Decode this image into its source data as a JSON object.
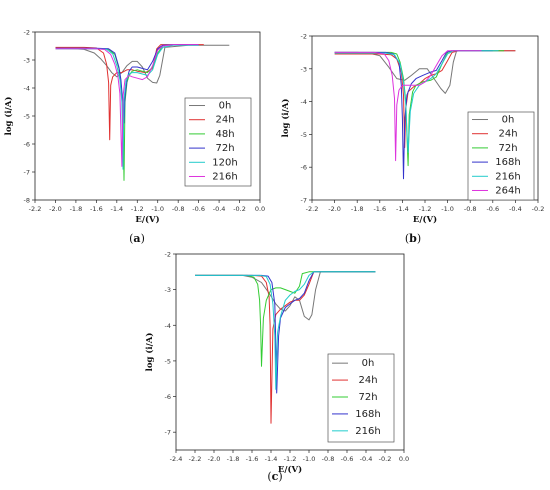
{
  "chart_data": [
    {
      "type": "line",
      "panel_label": "a",
      "xlabel": "E/(V)",
      "ylabel": "log (i/A)",
      "xlim": [
        -2.2,
        0.0
      ],
      "ylim": [
        -8,
        -2
      ],
      "xticks": [
        "-2.2",
        "-2.0",
        "-1.8",
        "-1.6",
        "-1.4",
        "-1.2",
        "-1.0",
        "-0.8",
        "-0.6",
        "-0.4",
        "-0.2",
        "0.0"
      ],
      "yticks": [
        "-8",
        "-7",
        "-6",
        "-5",
        "-4",
        "-3",
        "-2"
      ],
      "legend_position": "bottom-right",
      "series": [
        {
          "name": "0h",
          "color": "#777777",
          "x": [
            -2.0,
            -1.82,
            -1.72,
            -1.62,
            -1.56,
            -1.5,
            -1.45,
            -1.4,
            -1.35,
            -1.3,
            -1.25,
            -1.2,
            -1.15,
            -1.1,
            -1.05,
            -1.01,
            -0.98,
            -0.93,
            -0.7,
            -0.5,
            -0.3
          ],
          "y": [
            -2.58,
            -2.6,
            -2.62,
            -2.75,
            -2.95,
            -3.2,
            -3.45,
            -3.6,
            -3.45,
            -3.2,
            -3.05,
            -3.05,
            -3.25,
            -3.65,
            -3.8,
            -3.82,
            -3.55,
            -2.55,
            -2.47,
            -2.47,
            -2.47
          ]
        },
        {
          "name": "24h",
          "color": "#e03030",
          "x": [
            -2.0,
            -1.72,
            -1.6,
            -1.53,
            -1.5,
            -1.48,
            -1.47,
            -1.46,
            -1.44,
            -1.4,
            -1.35,
            -1.3,
            -1.25,
            -1.2,
            -1.12,
            -1.05,
            -1.01,
            -0.97,
            -0.85,
            -0.7,
            -0.55
          ],
          "y": [
            -2.55,
            -2.55,
            -2.57,
            -2.75,
            -3.15,
            -3.8,
            -5.85,
            -3.9,
            -3.6,
            -3.45,
            -3.45,
            -3.35,
            -3.35,
            -3.4,
            -3.45,
            -3.3,
            -2.6,
            -2.45,
            -2.45,
            -2.45,
            -2.45
          ]
        },
        {
          "name": "48h",
          "color": "#33cc33",
          "x": [
            -2.0,
            -1.6,
            -1.48,
            -1.42,
            -1.38,
            -1.36,
            -1.34,
            -1.33,
            -1.32,
            -1.3,
            -1.28,
            -1.25,
            -1.2,
            -1.15,
            -1.1,
            -1.05,
            -1.0,
            -0.95,
            -0.85,
            -0.7,
            -0.6
          ],
          "y": [
            -2.6,
            -2.6,
            -2.62,
            -2.8,
            -3.3,
            -3.8,
            -4.9,
            -7.3,
            -4.5,
            -3.8,
            -3.55,
            -3.4,
            -3.35,
            -3.4,
            -3.45,
            -3.25,
            -2.75,
            -2.5,
            -2.45,
            -2.45,
            -2.45
          ]
        },
        {
          "name": "72h",
          "color": "#3333cc",
          "x": [
            -2.0,
            -1.6,
            -1.48,
            -1.42,
            -1.38,
            -1.36,
            -1.34,
            -1.33,
            -1.32,
            -1.3,
            -1.28,
            -1.25,
            -1.2,
            -1.15,
            -1.1,
            -1.05,
            -1.0,
            -0.95,
            -0.85,
            -0.7,
            -0.6
          ],
          "y": [
            -2.58,
            -2.58,
            -2.6,
            -2.75,
            -3.25,
            -3.7,
            -4.6,
            -5.25,
            -4.3,
            -3.7,
            -3.4,
            -3.25,
            -3.25,
            -3.3,
            -3.35,
            -3.05,
            -2.6,
            -2.47,
            -2.45,
            -2.45,
            -2.45
          ]
        },
        {
          "name": "120h",
          "color": "#22cccc",
          "x": [
            -2.0,
            -1.6,
            -1.5,
            -1.44,
            -1.4,
            -1.37,
            -1.35,
            -1.34,
            -1.33,
            -1.31,
            -1.28,
            -1.25,
            -1.2,
            -1.15,
            -1.1,
            -1.05,
            -1.0,
            -0.95,
            -0.85,
            -0.7,
            -0.6
          ],
          "y": [
            -2.6,
            -2.6,
            -2.62,
            -2.78,
            -3.2,
            -3.7,
            -4.5,
            -6.9,
            -4.4,
            -3.75,
            -3.5,
            -3.45,
            -3.45,
            -3.5,
            -3.55,
            -3.35,
            -2.8,
            -2.55,
            -2.47,
            -2.47,
            -2.47
          ]
        },
        {
          "name": "216h",
          "color": "#dd33dd",
          "x": [
            -2.0,
            -1.62,
            -1.52,
            -1.46,
            -1.42,
            -1.39,
            -1.37,
            -1.35,
            -1.34,
            -1.32,
            -1.28,
            -1.25,
            -1.2,
            -1.15,
            -1.1,
            -1.05,
            -1.0,
            -0.95,
            -0.85,
            -0.7,
            -0.6
          ],
          "y": [
            -2.6,
            -2.6,
            -2.62,
            -2.8,
            -3.15,
            -3.55,
            -4.2,
            -6.8,
            -4.3,
            -3.7,
            -3.55,
            -3.6,
            -3.65,
            -3.7,
            -3.6,
            -3.2,
            -2.65,
            -2.5,
            -2.45,
            -2.45,
            -2.45
          ]
        }
      ]
    },
    {
      "type": "line",
      "panel_label": "b",
      "xlabel": "E/(V)",
      "ylabel": "log (i/A)",
      "xlim": [
        -2.2,
        -0.2
      ],
      "ylim": [
        -7,
        -2
      ],
      "xticks": [
        "-2.2",
        "-2.0",
        "-1.8",
        "-1.6",
        "-1.4",
        "-1.2",
        "-1.0",
        "-0.8",
        "-0.6",
        "-0.4",
        "-0.2"
      ],
      "yticks": [
        "-7",
        "-6",
        "-5",
        "-4",
        "-3",
        "-2"
      ],
      "legend_position": "bottom-right",
      "series": [
        {
          "name": "0h",
          "color": "#777777",
          "x": [
            -2.0,
            -1.8,
            -1.7,
            -1.6,
            -1.52,
            -1.45,
            -1.38,
            -1.32,
            -1.25,
            -1.18,
            -1.12,
            -1.06,
            -1.02,
            -0.98,
            -0.95,
            -0.92,
            -0.8,
            -0.6,
            -0.4
          ],
          "y": [
            -2.5,
            -2.5,
            -2.52,
            -2.6,
            -2.95,
            -3.3,
            -3.35,
            -3.2,
            -3.0,
            -3.0,
            -3.3,
            -3.6,
            -3.75,
            -3.5,
            -2.8,
            -2.45,
            -2.45,
            -2.45,
            -2.45
          ]
        },
        {
          "name": "24h",
          "color": "#e03030",
          "x": [
            -2.0,
            -1.6,
            -1.5,
            -1.45,
            -1.41,
            -1.39,
            -1.38,
            -1.37,
            -1.35,
            -1.3,
            -1.25,
            -1.2,
            -1.15,
            -1.1,
            -1.05,
            -1.0,
            -0.96,
            -0.9,
            -0.7,
            -0.5,
            -0.4
          ],
          "y": [
            -2.55,
            -2.55,
            -2.57,
            -2.7,
            -3.1,
            -3.8,
            -5.4,
            -4.2,
            -3.7,
            -3.55,
            -3.45,
            -3.3,
            -3.2,
            -3.15,
            -3.05,
            -2.75,
            -2.5,
            -2.45,
            -2.45,
            -2.45,
            -2.45
          ]
        },
        {
          "name": "72h",
          "color": "#33cc33",
          "x": [
            -2.0,
            -1.5,
            -1.45,
            -1.42,
            -1.39,
            -1.37,
            -1.36,
            -1.35,
            -1.34,
            -1.31,
            -1.28,
            -1.22,
            -1.15,
            -1.1,
            -1.05,
            -1.0,
            -0.95,
            -0.85,
            -0.7,
            -0.5
          ],
          "y": [
            -2.5,
            -2.5,
            -2.55,
            -2.8,
            -3.3,
            -4.0,
            -5.0,
            -5.95,
            -4.4,
            -3.7,
            -3.5,
            -3.4,
            -3.35,
            -3.25,
            -2.85,
            -2.5,
            -2.45,
            -2.45,
            -2.45,
            -2.45
          ]
        },
        {
          "name": "168h",
          "color": "#3333cc",
          "x": [
            -2.0,
            -1.55,
            -1.48,
            -1.43,
            -1.41,
            -1.4,
            -1.39,
            -1.38,
            -1.36,
            -1.32,
            -1.28,
            -1.22,
            -1.15,
            -1.1,
            -1.05,
            -1.01,
            -0.97,
            -0.92,
            -0.8,
            -0.6
          ],
          "y": [
            -2.5,
            -2.5,
            -2.55,
            -2.8,
            -3.5,
            -4.5,
            -6.35,
            -4.6,
            -3.8,
            -3.45,
            -3.3,
            -3.2,
            -3.1,
            -3.05,
            -2.75,
            -2.5,
            -2.45,
            -2.45,
            -2.45,
            -2.45
          ]
        },
        {
          "name": "216h",
          "color": "#22cccc",
          "x": [
            -2.0,
            -1.55,
            -1.47,
            -1.42,
            -1.39,
            -1.37,
            -1.36,
            -1.35,
            -1.33,
            -1.3,
            -1.25,
            -1.2,
            -1.15,
            -1.1,
            -1.05,
            -1.0,
            -0.95,
            -0.85,
            -0.7,
            -0.55
          ],
          "y": [
            -2.52,
            -2.52,
            -2.57,
            -2.85,
            -3.4,
            -4.1,
            -4.9,
            -5.55,
            -4.3,
            -3.75,
            -3.5,
            -3.4,
            -3.3,
            -3.15,
            -2.85,
            -2.55,
            -2.45,
            -2.45,
            -2.45,
            -2.45
          ]
        },
        {
          "name": "264h",
          "color": "#dd33dd",
          "x": [
            -2.0,
            -1.65,
            -1.56,
            -1.52,
            -1.49,
            -1.47,
            -1.46,
            -1.45,
            -1.43,
            -1.4,
            -1.35,
            -1.3,
            -1.25,
            -1.2,
            -1.15,
            -1.1,
            -1.05,
            -1.0,
            -0.95,
            -0.85,
            -0.7
          ],
          "y": [
            -2.5,
            -2.5,
            -2.55,
            -2.75,
            -3.2,
            -3.9,
            -5.8,
            -4.1,
            -3.65,
            -3.5,
            -3.5,
            -3.5,
            -3.5,
            -3.4,
            -3.2,
            -2.9,
            -2.6,
            -2.45,
            -2.45,
            -2.45,
            -2.45
          ]
        }
      ]
    },
    {
      "type": "line",
      "panel_label": "c",
      "xlabel": "E/(V)",
      "ylabel": "log (i/A)",
      "xlim": [
        -2.4,
        0.0
      ],
      "ylim": [
        -7.5,
        -2
      ],
      "xticks": [
        "-2.4",
        "-2.2",
        "-2.0",
        "-1.8",
        "-1.6",
        "-1.4",
        "-1.2",
        "-1.0",
        "-0.8",
        "-0.6",
        "-0.4",
        "-0.2",
        "0.0"
      ],
      "yticks": [
        "-7",
        "-6",
        "-5",
        "-4",
        "-3",
        "-2"
      ],
      "legend_position": "bottom-right",
      "series": [
        {
          "name": "0h",
          "color": "#777777",
          "x": [
            -2.2,
            -1.7,
            -1.6,
            -1.5,
            -1.42,
            -1.35,
            -1.3,
            -1.25,
            -1.2,
            -1.15,
            -1.1,
            -1.05,
            -1.0,
            -0.97,
            -0.93,
            -0.88,
            -0.6,
            -0.3
          ],
          "y": [
            -2.6,
            -2.6,
            -2.65,
            -2.8,
            -3.1,
            -3.4,
            -3.55,
            -3.6,
            -3.45,
            -3.2,
            -3.3,
            -3.75,
            -3.85,
            -3.7,
            -3.0,
            -2.5,
            -2.5,
            -2.5
          ]
        },
        {
          "name": "24h",
          "color": "#e03030",
          "x": [
            -2.2,
            -1.6,
            -1.5,
            -1.45,
            -1.42,
            -1.41,
            -1.4,
            -1.38,
            -1.35,
            -1.3,
            -1.25,
            -1.2,
            -1.15,
            -1.1,
            -1.05,
            -1.0,
            -0.95,
            -0.9,
            -0.6,
            -0.3
          ],
          "y": [
            -2.6,
            -2.6,
            -2.62,
            -2.8,
            -3.2,
            -4.0,
            -6.75,
            -4.1,
            -3.7,
            -3.55,
            -3.45,
            -3.35,
            -3.3,
            -3.3,
            -3.15,
            -2.85,
            -2.5,
            -2.5,
            -2.5,
            -2.5
          ]
        },
        {
          "name": "72h",
          "color": "#33cc33",
          "x": [
            -2.2,
            -1.65,
            -1.58,
            -1.54,
            -1.52,
            -1.51,
            -1.5,
            -1.48,
            -1.45,
            -1.4,
            -1.35,
            -1.3,
            -1.25,
            -1.2,
            -1.15,
            -1.1,
            -1.07,
            -1.0,
            -0.8,
            -0.6,
            -0.3
          ],
          "y": [
            -2.6,
            -2.6,
            -2.65,
            -2.85,
            -3.3,
            -4.0,
            -5.15,
            -3.8,
            -3.3,
            -3.0,
            -2.95,
            -2.95,
            -3.0,
            -3.05,
            -3.1,
            -2.9,
            -2.55,
            -2.5,
            -2.5,
            -2.5,
            -2.5
          ]
        },
        {
          "name": "168h",
          "color": "#3333cc",
          "x": [
            -2.2,
            -1.5,
            -1.43,
            -1.39,
            -1.36,
            -1.35,
            -1.34,
            -1.32,
            -1.3,
            -1.25,
            -1.2,
            -1.15,
            -1.1,
            -1.05,
            -1.0,
            -0.95,
            -0.9,
            -0.6,
            -0.3
          ],
          "y": [
            -2.6,
            -2.6,
            -2.62,
            -2.8,
            -3.4,
            -4.5,
            -5.9,
            -4.3,
            -3.8,
            -3.5,
            -3.4,
            -3.3,
            -3.25,
            -3.1,
            -2.75,
            -2.5,
            -2.5,
            -2.5,
            -2.5
          ]
        },
        {
          "name": "216h",
          "color": "#22cccc",
          "x": [
            -2.2,
            -1.52,
            -1.45,
            -1.41,
            -1.38,
            -1.36,
            -1.35,
            -1.33,
            -1.3,
            -1.25,
            -1.2,
            -1.15,
            -1.1,
            -1.05,
            -1.0,
            -0.95,
            -0.9,
            -0.6,
            -0.3
          ],
          "y": [
            -2.6,
            -2.6,
            -2.63,
            -2.85,
            -3.4,
            -4.3,
            -5.8,
            -4.2,
            -3.75,
            -3.3,
            -3.15,
            -3.05,
            -3.0,
            -2.85,
            -2.6,
            -2.5,
            -2.5,
            -2.5,
            -2.5
          ]
        }
      ]
    }
  ]
}
